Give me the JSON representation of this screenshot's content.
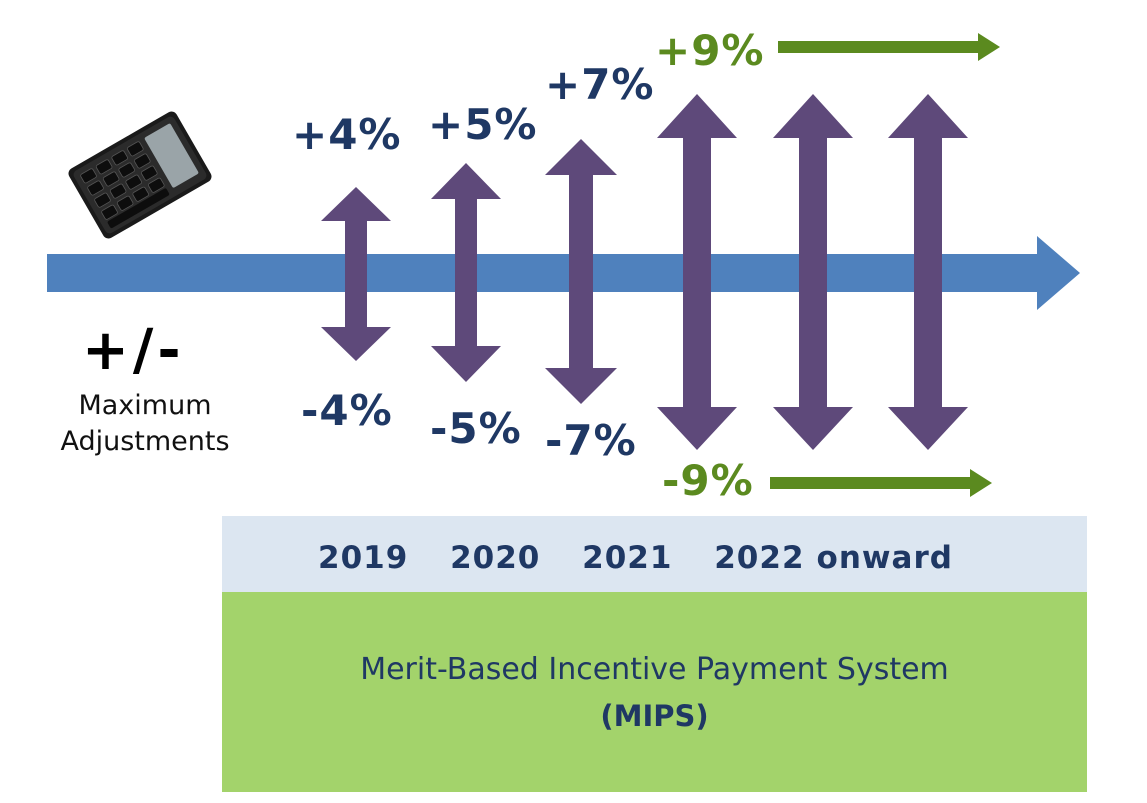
{
  "left_panel": {
    "calculator_icon": "calculator-icon",
    "symbol": "+/-",
    "label_line1": "Maximum",
    "label_line2": "Adjustments"
  },
  "colors": {
    "timeline": "#4f81bd",
    "double_arrow": "#5e497a",
    "label_blue": "#1f3864",
    "label_green": "#5b8a1f",
    "years_band": "#dce6f1",
    "program_box": "#a3d36b"
  },
  "adjustments": [
    {
      "year": "2019",
      "up": "+4%",
      "down": "-4%"
    },
    {
      "year": "2020",
      "up": "+5%",
      "down": "-5%"
    },
    {
      "year": "2021",
      "up": "+7%",
      "down": "-7%"
    },
    {
      "year": "2022 onward",
      "up": "+9%",
      "down": "-9%"
    }
  ],
  "years_band": {
    "y2019": "2019",
    "y2020": "2020",
    "y2021": "2021",
    "y2022": "2022",
    "onward": "onward"
  },
  "program": {
    "title": "Merit-Based Incentive Payment System",
    "abbr": "(MIPS)"
  }
}
